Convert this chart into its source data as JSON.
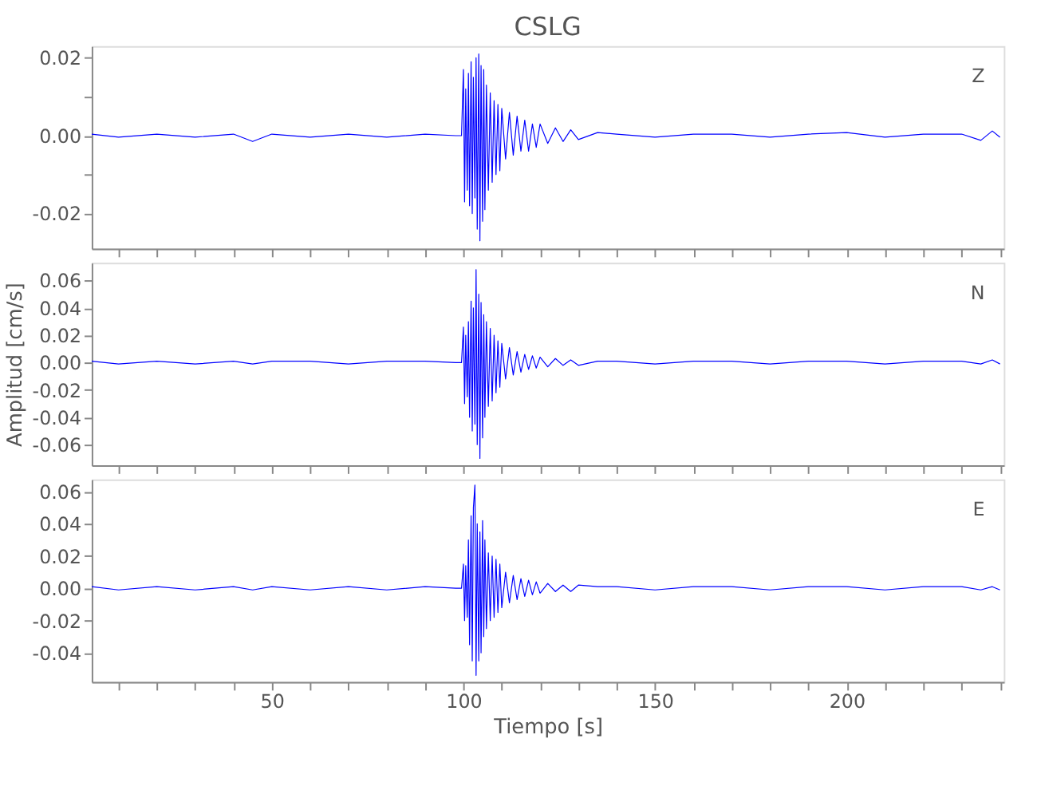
{
  "chart_data": [
    {
      "type": "line",
      "title": "CSLG",
      "annotations": [
        "Z"
      ],
      "xlim": [
        3,
        241
      ],
      "ylim": [
        -0.029,
        0.023
      ],
      "tick_labels": "y",
      "grid": false,
      "marker": "none",
      "line_style": "solid",
      "xticks": [
        {
          "value": 10,
          "label": null
        },
        {
          "value": 20,
          "label": null
        },
        {
          "value": 30,
          "label": null
        },
        {
          "value": 40,
          "label": null
        },
        {
          "value": 50,
          "label": null
        },
        {
          "value": 60,
          "label": null
        },
        {
          "value": 70,
          "label": null
        },
        {
          "value": 80,
          "label": null
        },
        {
          "value": 90,
          "label": null
        },
        {
          "value": 100,
          "label": null
        },
        {
          "value": 110,
          "label": null
        },
        {
          "value": 120,
          "label": null
        },
        {
          "value": 130,
          "label": null
        },
        {
          "value": 140,
          "label": null
        },
        {
          "value": 150,
          "label": null
        },
        {
          "value": 160,
          "label": null
        },
        {
          "value": 170,
          "label": null
        },
        {
          "value": 180,
          "label": null
        },
        {
          "value": 190,
          "label": null
        },
        {
          "value": 200,
          "label": null
        },
        {
          "value": 210,
          "label": null
        },
        {
          "value": 220,
          "label": null
        },
        {
          "value": 230,
          "label": null
        },
        {
          "value": 240,
          "label": null
        }
      ],
      "yticks": [
        {
          "value": -0.02,
          "label": "-0.02"
        },
        {
          "value": -0.01,
          "label": null
        },
        {
          "value": 0,
          "label": "0.00"
        },
        {
          "value": 0.01,
          "label": null
        },
        {
          "value": 0.02,
          "label": "0.02"
        }
      ],
      "series": [
        {
          "color": "#0000ff",
          "x": [
            3,
            10,
            20,
            30,
            40,
            45,
            50,
            60,
            70,
            80,
            90,
            98,
            99.5,
            100,
            100.3,
            100.6,
            101,
            101.3,
            101.6,
            102,
            102.3,
            102.6,
            103,
            103.3,
            103.6,
            104,
            104.3,
            104.6,
            105,
            105.3,
            105.6,
            106,
            106.5,
            107,
            107.5,
            108,
            108.5,
            109,
            109.5,
            110,
            111,
            112,
            113,
            114,
            115,
            116,
            117,
            118,
            119,
            120,
            122,
            124,
            126,
            128,
            130,
            135,
            140,
            150,
            160,
            170,
            180,
            190,
            200,
            210,
            220,
            230,
            235,
            238,
            240
          ],
          "values": [
            0.0004,
            -0.0004,
            0.0004,
            -0.0004,
            0.0004,
            -0.0015,
            0.0004,
            -0.0004,
            0.0004,
            -0.0004,
            0.0004,
            0,
            0,
            0.017,
            -0.017,
            0.012,
            -0.014,
            0.016,
            -0.018,
            0.019,
            -0.02,
            0.015,
            -0.016,
            0.02,
            -0.024,
            0.021,
            -0.027,
            0.018,
            -0.022,
            0.017,
            -0.019,
            0.013,
            -0.014,
            0.011,
            -0.012,
            0.009,
            -0.01,
            0.008,
            -0.009,
            0.007,
            -0.006,
            0.006,
            -0.005,
            0.005,
            -0.004,
            0.004,
            -0.004,
            0.003,
            -0.003,
            0.003,
            -0.002,
            0.002,
            -0.0015,
            0.0015,
            -0.001,
            0.0008,
            0.0004,
            -0.0004,
            0.0004,
            0.0004,
            -0.0004,
            0.0004,
            0.0008,
            -0.0004,
            0.0004,
            0.0004,
            -0.0012,
            0.0012,
            -0.0004
          ]
        }
      ]
    },
    {
      "type": "line",
      "ylabel": "Amplitud [cm/s]",
      "annotations": [
        "N"
      ],
      "xlim": [
        3,
        241
      ],
      "ylim": [
        -0.075,
        0.073
      ],
      "tick_labels": "y",
      "grid": false,
      "marker": "none",
      "line_style": "solid",
      "xticks": [
        {
          "value": 10,
          "label": null
        },
        {
          "value": 20,
          "label": null
        },
        {
          "value": 30,
          "label": null
        },
        {
          "value": 40,
          "label": null
        },
        {
          "value": 50,
          "label": null
        },
        {
          "value": 60,
          "label": null
        },
        {
          "value": 70,
          "label": null
        },
        {
          "value": 80,
          "label": null
        },
        {
          "value": 90,
          "label": null
        },
        {
          "value": 100,
          "label": null
        },
        {
          "value": 110,
          "label": null
        },
        {
          "value": 120,
          "label": null
        },
        {
          "value": 130,
          "label": null
        },
        {
          "value": 140,
          "label": null
        },
        {
          "value": 150,
          "label": null
        },
        {
          "value": 160,
          "label": null
        },
        {
          "value": 170,
          "label": null
        },
        {
          "value": 180,
          "label": null
        },
        {
          "value": 190,
          "label": null
        },
        {
          "value": 200,
          "label": null
        },
        {
          "value": 210,
          "label": null
        },
        {
          "value": 220,
          "label": null
        },
        {
          "value": 230,
          "label": null
        },
        {
          "value": 240,
          "label": null
        }
      ],
      "yticks": [
        {
          "value": -0.06,
          "label": "-0.06"
        },
        {
          "value": -0.04,
          "label": "-0.04"
        },
        {
          "value": -0.02,
          "label": "-0.02"
        },
        {
          "value": 0,
          "label": "0.00"
        },
        {
          "value": 0.02,
          "label": "0.02"
        },
        {
          "value": 0.04,
          "label": "0.04"
        },
        {
          "value": 0.06,
          "label": "0.06"
        }
      ],
      "series": [
        {
          "color": "#0000ff",
          "x": [
            3,
            10,
            20,
            30,
            40,
            45,
            50,
            60,
            70,
            80,
            90,
            98,
            99.5,
            100,
            100.3,
            100.6,
            101,
            101.3,
            101.6,
            102,
            102.3,
            102.6,
            103,
            103.3,
            103.6,
            104,
            104.3,
            104.6,
            105,
            105.3,
            105.6,
            106,
            106.5,
            107,
            107.5,
            108,
            108.5,
            109,
            109.5,
            110,
            111,
            112,
            113,
            114,
            115,
            116,
            117,
            118,
            119,
            120,
            122,
            124,
            126,
            128,
            130,
            135,
            140,
            150,
            160,
            170,
            180,
            190,
            200,
            210,
            220,
            230,
            235,
            238,
            240
          ],
          "values": [
            0.001,
            -0.001,
            0.001,
            -0.001,
            0.001,
            -0.001,
            0.001,
            0.001,
            -0.001,
            0.001,
            0.001,
            0,
            0,
            0.026,
            -0.03,
            0.02,
            -0.025,
            0.03,
            -0.04,
            0.045,
            -0.05,
            0.04,
            -0.045,
            0.068,
            -0.06,
            0.05,
            -0.07,
            0.044,
            -0.055,
            0.035,
            -0.04,
            0.03,
            -0.032,
            0.025,
            -0.028,
            0.02,
            -0.022,
            0.016,
            -0.018,
            0.014,
            -0.012,
            0.011,
            -0.009,
            0.008,
            -0.007,
            0.006,
            -0.005,
            0.005,
            -0.004,
            0.004,
            -0.003,
            0.003,
            -0.002,
            0.002,
            -0.002,
            0.001,
            0.001,
            -0.001,
            0.001,
            0.001,
            -0.001,
            0.001,
            0.001,
            -0.001,
            0.001,
            0.001,
            -0.001,
            0.002,
            -0.001
          ]
        }
      ]
    },
    {
      "type": "line",
      "xlabel": "Tiempo [s]",
      "annotations": [
        "E"
      ],
      "xlim": [
        3,
        241
      ],
      "ylim": [
        -0.058,
        0.0675
      ],
      "grid": false,
      "marker": "none",
      "line_style": "solid",
      "xticks": [
        {
          "value": 10,
          "label": null
        },
        {
          "value": 20,
          "label": null
        },
        {
          "value": 30,
          "label": null
        },
        {
          "value": 40,
          "label": null
        },
        {
          "value": 50,
          "label": "50"
        },
        {
          "value": 60,
          "label": null
        },
        {
          "value": 70,
          "label": null
        },
        {
          "value": 80,
          "label": null
        },
        {
          "value": 90,
          "label": null
        },
        {
          "value": 100,
          "label": "100"
        },
        {
          "value": 110,
          "label": null
        },
        {
          "value": 120,
          "label": null
        },
        {
          "value": 130,
          "label": null
        },
        {
          "value": 140,
          "label": null
        },
        {
          "value": 150,
          "label": "150"
        },
        {
          "value": 160,
          "label": null
        },
        {
          "value": 170,
          "label": null
        },
        {
          "value": 180,
          "label": null
        },
        {
          "value": 190,
          "label": null
        },
        {
          "value": 200,
          "label": "200"
        },
        {
          "value": 210,
          "label": null
        },
        {
          "value": 220,
          "label": null
        },
        {
          "value": 230,
          "label": null
        },
        {
          "value": 240,
          "label": null
        }
      ],
      "yticks": [
        {
          "value": -0.04,
          "label": "-0.04"
        },
        {
          "value": -0.02,
          "label": "-0.02"
        },
        {
          "value": 0,
          "label": "0.00"
        },
        {
          "value": 0.02,
          "label": "0.02"
        },
        {
          "value": 0.04,
          "label": "0.04"
        },
        {
          "value": 0.06,
          "label": "0.06"
        }
      ],
      "series": [
        {
          "color": "#0000ff",
          "x": [
            3,
            10,
            20,
            30,
            40,
            45,
            50,
            60,
            70,
            80,
            90,
            98,
            99.5,
            100,
            100.3,
            100.6,
            101,
            101.3,
            101.6,
            102,
            102.3,
            102.6,
            103,
            103.3,
            103.6,
            104,
            104.3,
            104.6,
            105,
            105.3,
            105.6,
            106,
            106.5,
            107,
            107.5,
            108,
            108.5,
            109,
            109.5,
            110,
            111,
            112,
            113,
            114,
            115,
            116,
            117,
            118,
            119,
            120,
            122,
            124,
            126,
            128,
            130,
            135,
            140,
            150,
            160,
            170,
            180,
            190,
            200,
            210,
            220,
            230,
            235,
            238,
            240
          ],
          "values": [
            0.001,
            -0.001,
            0.001,
            -0.001,
            0.001,
            -0.001,
            0.001,
            -0.001,
            0.001,
            -0.001,
            0.001,
            0,
            0,
            0.015,
            -0.02,
            0.014,
            -0.018,
            0.03,
            -0.035,
            0.045,
            -0.045,
            0.05,
            0.064,
            -0.054,
            0.04,
            -0.045,
            0.035,
            -0.04,
            0.042,
            -0.03,
            0.03,
            -0.025,
            0.022,
            -0.02,
            0.02,
            -0.018,
            0.018,
            -0.015,
            0.015,
            -0.012,
            0.01,
            -0.009,
            0.008,
            -0.007,
            0.006,
            -0.005,
            0.005,
            -0.004,
            0.004,
            -0.003,
            0.003,
            -0.002,
            0.002,
            -0.002,
            0.002,
            0.001,
            0.001,
            -0.001,
            0.001,
            0.001,
            -0.001,
            0.001,
            0.001,
            -0.001,
            0.001,
            0.001,
            -0.001,
            0.001,
            -0.001
          ]
        }
      ]
    }
  ]
}
